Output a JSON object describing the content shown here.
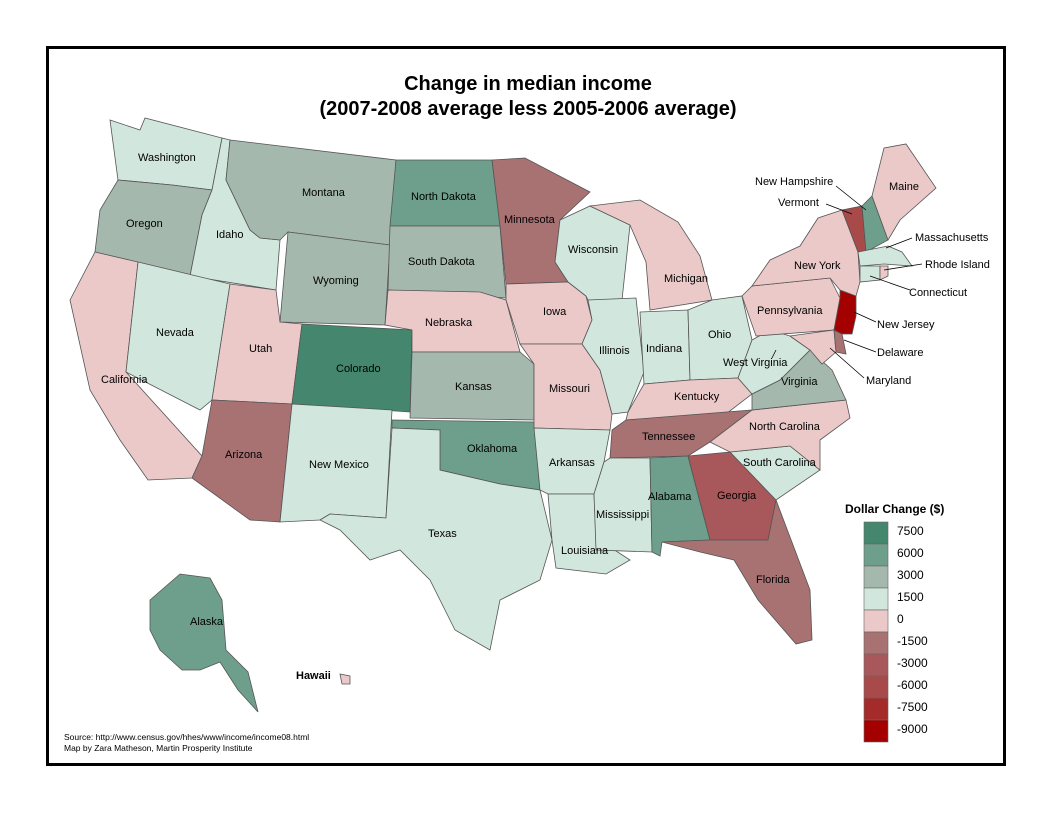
{
  "title": {
    "line1": "Change in median income",
    "line2": "(2007-2008 average less 2005-2006 average)"
  },
  "colors": {
    "c7500": "#44876e",
    "c6000": "#6e9f8c",
    "c3000": "#a5b8ae",
    "c1500": "#d1e6dc",
    "c0": "#ecc9c9",
    "cm1500": "#a87273",
    "cm3000": "#a8585a",
    "cm6000": "#a84a49",
    "cm7500": "#a52b2b",
    "cm9000": "#a50000"
  },
  "legend": {
    "title": "Dollar Change ($)",
    "entries": [
      {
        "label": "7500",
        "color": "#44876e"
      },
      {
        "label": "6000",
        "color": "#6e9f8c"
      },
      {
        "label": "3000",
        "color": "#a5b8ae"
      },
      {
        "label": "1500",
        "color": "#d1e6dc"
      },
      {
        "label": "0",
        "color": "#ecc9c9"
      },
      {
        "label": "-1500",
        "color": "#a87273"
      },
      {
        "label": "-3000",
        "color": "#a8585a"
      },
      {
        "label": "-6000",
        "color": "#a84a49"
      },
      {
        "label": "-7500",
        "color": "#a52b2b"
      },
      {
        "label": "-9000",
        "color": "#a50000"
      }
    ]
  },
  "states": {
    "washington": {
      "name": "Washington",
      "cls": "c1500"
    },
    "oregon": {
      "name": "Oregon",
      "cls": "c3000"
    },
    "california": {
      "name": "California",
      "cls": "c0"
    },
    "idaho": {
      "name": "Idaho",
      "cls": "c1500"
    },
    "nevada": {
      "name": "Nevada",
      "cls": "c1500"
    },
    "utah": {
      "name": "Utah",
      "cls": "c0"
    },
    "arizona": {
      "name": "Arizona",
      "cls": "cm1500"
    },
    "montana": {
      "name": "Montana",
      "cls": "c3000"
    },
    "wyoming": {
      "name": "Wyoming",
      "cls": "c3000"
    },
    "colorado": {
      "name": "Colorado",
      "cls": "c7500"
    },
    "new_mexico": {
      "name": "New Mexico",
      "cls": "c1500"
    },
    "north_dakota": {
      "name": "North Dakota",
      "cls": "c6000"
    },
    "south_dakota": {
      "name": "South Dakota",
      "cls": "c3000"
    },
    "nebraska": {
      "name": "Nebraska",
      "cls": "c0"
    },
    "kansas": {
      "name": "Kansas",
      "cls": "c3000"
    },
    "oklahoma": {
      "name": "Oklahoma",
      "cls": "c6000"
    },
    "texas": {
      "name": "Texas",
      "cls": "c1500"
    },
    "minnesota": {
      "name": "Minnesota",
      "cls": "cm1500"
    },
    "iowa": {
      "name": "Iowa",
      "cls": "c0"
    },
    "missouri": {
      "name": "Missouri",
      "cls": "c0"
    },
    "arkansas": {
      "name": "Arkansas",
      "cls": "c1500"
    },
    "louisiana": {
      "name": "Louisiana",
      "cls": "c1500"
    },
    "wisconsin": {
      "name": "Wisconsin",
      "cls": "c1500"
    },
    "illinois": {
      "name": "Illinois",
      "cls": "c1500"
    },
    "michigan": {
      "name": "Michigan",
      "cls": "c0"
    },
    "indiana": {
      "name": "Indiana",
      "cls": "c1500"
    },
    "ohio": {
      "name": "Ohio",
      "cls": "c1500"
    },
    "kentucky": {
      "name": "Kentucky",
      "cls": "c0"
    },
    "tennessee": {
      "name": "Tennessee",
      "cls": "cm1500"
    },
    "mississippi": {
      "name": "Mississippi",
      "cls": "c1500"
    },
    "alabama": {
      "name": "Alabama",
      "cls": "c6000"
    },
    "georgia": {
      "name": "Georgia",
      "cls": "cm3000"
    },
    "florida": {
      "name": "Florida",
      "cls": "cm1500"
    },
    "south_carolina": {
      "name": "South Carolina",
      "cls": "c1500"
    },
    "north_carolina": {
      "name": "North Carolina",
      "cls": "c0"
    },
    "virginia": {
      "name": "Virginia",
      "cls": "c3000"
    },
    "west_virginia": {
      "name": "West Virginia",
      "cls": "c1500"
    },
    "pennsylvania": {
      "name": "Pennsylvania",
      "cls": "c0"
    },
    "new_york": {
      "name": "New York",
      "cls": "c0"
    },
    "vermont": {
      "name": "Vermont",
      "cls": "cm6000"
    },
    "new_hampshire": {
      "name": "New Hampshire",
      "cls": "c6000"
    },
    "maine": {
      "name": "Maine",
      "cls": "c0"
    },
    "massachusetts": {
      "name": "Massachusetts",
      "cls": "c1500"
    },
    "rhode_island": {
      "name": "Rhode Island",
      "cls": "c0"
    },
    "connecticut": {
      "name": "Connecticut",
      "cls": "c1500"
    },
    "new_jersey": {
      "name": "New Jersey",
      "cls": "cm9000"
    },
    "delaware": {
      "name": "Delaware",
      "cls": "cm1500"
    },
    "maryland": {
      "name": "Maryland",
      "cls": "c0"
    },
    "alaska": {
      "name": "Alaska",
      "cls": "c6000"
    },
    "hawaii": {
      "name": "Hawaii",
      "cls": "c0"
    }
  },
  "source": {
    "line1": "Source: http://www.census.gov/hhes/www/income/income08.html",
    "line2": "Map by Zara Matheson, Martin Prosperity Institute"
  }
}
